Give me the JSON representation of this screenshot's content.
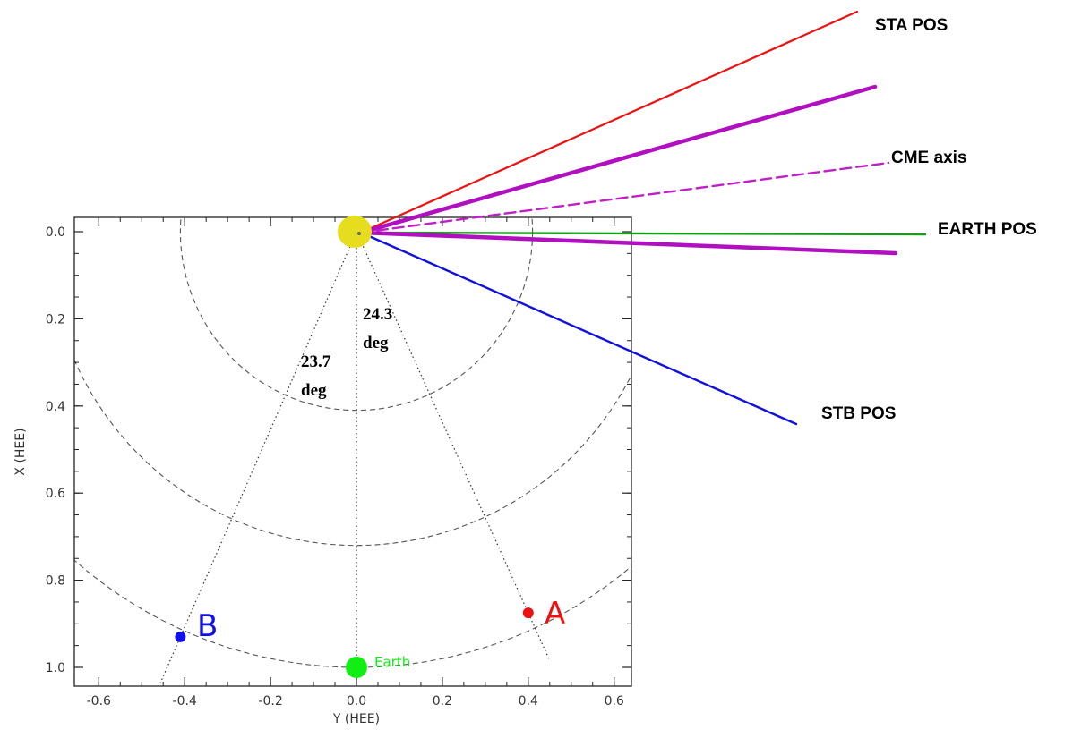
{
  "chart_data": {
    "type": "scatter",
    "title": "",
    "xlabel": "Y (HEE)",
    "ylabel": "X (HEE)",
    "xlim": [
      -0.63,
      0.63
    ],
    "ylim": [
      1.05,
      -0.03
    ],
    "y_axis_inverted": true,
    "xticks": [
      -0.6,
      -0.4,
      -0.2,
      0.0,
      0.2,
      0.4,
      0.6
    ],
    "xtick_labels": [
      "-0.6",
      "-0.4",
      "-0.2",
      "0.0",
      "0.2",
      "0.4",
      "0.6"
    ],
    "yticks": [
      0.0,
      0.2,
      0.4,
      0.6,
      0.8,
      1.0
    ],
    "ytick_labels": [
      "0.0",
      "0.2",
      "0.4",
      "0.6",
      "0.8",
      "1.0"
    ],
    "grid": false,
    "sun": {
      "name": "Sun",
      "x": 0.0,
      "y": 0.0,
      "color": "#e6dd1e"
    },
    "bodies": [
      {
        "name": "B",
        "label": "B",
        "x": -0.41,
        "y": 0.93,
        "color": "#1010ee"
      },
      {
        "name": "A",
        "label": "A",
        "x": 0.4,
        "y": 0.875,
        "color": "#ee1010"
      },
      {
        "name": "Earth",
        "label": "Earth",
        "x": 0.0,
        "y": 1.0,
        "color": "#11ee11"
      }
    ],
    "orbit_circles_au": [
      0.41,
      0.72,
      1.0
    ],
    "sight_lines": [
      {
        "name": "to-B",
        "x": -0.41,
        "y": 0.93
      },
      {
        "name": "to-Earth",
        "x": 0.0,
        "y": 1.0
      },
      {
        "name": "to-A",
        "x": 0.4,
        "y": 0.875
      }
    ],
    "angle_labels": [
      {
        "name": "angle-b",
        "line1": "23.7",
        "line2": "deg"
      },
      {
        "name": "angle-a",
        "line1": "24.3",
        "line2": "deg"
      }
    ],
    "directions": [
      {
        "name": "STA POS",
        "label": "STA POS",
        "color": "#ee1111",
        "style": "solid"
      },
      {
        "name": "CME edge 1",
        "label": "",
        "color": "#b010c0",
        "style": "thick"
      },
      {
        "name": "CME axis",
        "label": "CME axis",
        "color": "#c020c8",
        "style": "dashed"
      },
      {
        "name": "EARTH POS",
        "label": "EARTH POS",
        "color": "#11a011",
        "style": "solid"
      },
      {
        "name": "CME edge 2",
        "label": "",
        "color": "#b010c0",
        "style": "thick"
      },
      {
        "name": "STB POS",
        "label": "STB POS",
        "color": "#1111dd",
        "style": "solid"
      }
    ]
  }
}
